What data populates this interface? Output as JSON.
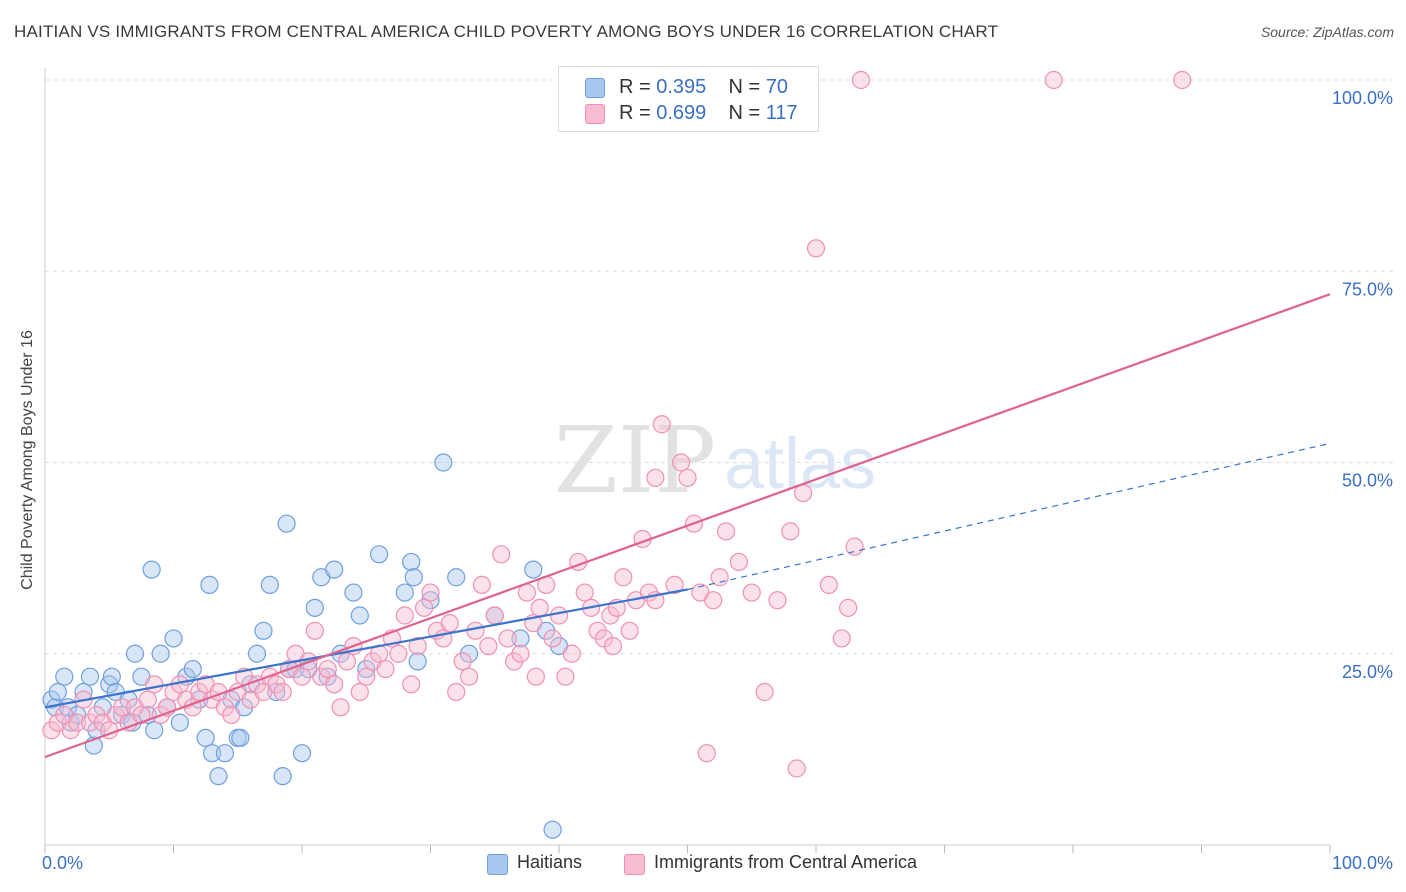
{
  "header": {
    "title": "HAITIAN VS IMMIGRANTS FROM CENTRAL AMERICA CHILD POVERTY AMONG BOYS UNDER 16 CORRELATION CHART",
    "source": "Source: ZipAtlas.com"
  },
  "watermark": {
    "zip": "ZIP",
    "atlas": "atlas"
  },
  "legend": {
    "rows": [
      {
        "r_label": "R = ",
        "r_value": "0.395",
        "n_label": "N = ",
        "n_value": "70"
      },
      {
        "r_label": "R = ",
        "r_value": "0.699",
        "n_label": "N = ",
        "n_value": "117"
      }
    ]
  },
  "chart_data": {
    "type": "scatter",
    "title": "HAITIAN VS IMMIGRANTS FROM CENTRAL AMERICA CHILD POVERTY AMONG BOYS UNDER 16 CORRELATION CHART",
    "xlabel": "",
    "ylabel": "Child Poverty Among Boys Under 16",
    "xlim": [
      0,
      100
    ],
    "ylim": [
      0,
      100
    ],
    "x_tick_labels": [
      "0.0%",
      "100.0%"
    ],
    "y_ticks": [
      25,
      50,
      75,
      100
    ],
    "y_tick_labels": [
      "25.0%",
      "50.0%",
      "75.0%",
      "100.0%"
    ],
    "grid": true,
    "legend_position": "top-center",
    "series": [
      {
        "name": "Haitians",
        "color": "#6f9fe0",
        "fill": "#a9c7ee",
        "line_color": "#3a74cc",
        "trend": {
          "x0": 0,
          "y0": 18.0,
          "x1": 50,
          "y1": 33.4,
          "dash_x1": 100,
          "dash_y1": 52.5
        },
        "points": [
          [
            0.5,
            19
          ],
          [
            0.8,
            18
          ],
          [
            1,
            20
          ],
          [
            1.5,
            22
          ],
          [
            1.8,
            18
          ],
          [
            2,
            16
          ],
          [
            2.5,
            17
          ],
          [
            3,
            20
          ],
          [
            3.5,
            22
          ],
          [
            3.8,
            13
          ],
          [
            4,
            15
          ],
          [
            4.5,
            18
          ],
          [
            5,
            21
          ],
          [
            5.2,
            22
          ],
          [
            5.5,
            20
          ],
          [
            6,
            17
          ],
          [
            6.5,
            19
          ],
          [
            6.8,
            16
          ],
          [
            7,
            25
          ],
          [
            7.5,
            22
          ],
          [
            8,
            17
          ],
          [
            8.5,
            15
          ],
          [
            8.3,
            36
          ],
          [
            9,
            25
          ],
          [
            9.5,
            18
          ],
          [
            10,
            27
          ],
          [
            10.5,
            16
          ],
          [
            11,
            22
          ],
          [
            11.5,
            23
          ],
          [
            12,
            19
          ],
          [
            12.5,
            14
          ],
          [
            12.8,
            34
          ],
          [
            13,
            12
          ],
          [
            13.5,
            9
          ],
          [
            14,
            12
          ],
          [
            14.5,
            19
          ],
          [
            15,
            14
          ],
          [
            15.5,
            18
          ],
          [
            15.2,
            14
          ],
          [
            16,
            21
          ],
          [
            16.5,
            25
          ],
          [
            17,
            28
          ],
          [
            17.5,
            34
          ],
          [
            18,
            20
          ],
          [
            18.5,
            9
          ],
          [
            18.8,
            42
          ],
          [
            19,
            23
          ],
          [
            19.5,
            23
          ],
          [
            20,
            12
          ],
          [
            20.5,
            23
          ],
          [
            21,
            31
          ],
          [
            21.5,
            35
          ],
          [
            22,
            22
          ],
          [
            22.5,
            36
          ],
          [
            23,
            25
          ],
          [
            24,
            33
          ],
          [
            24.5,
            30
          ],
          [
            25,
            23
          ],
          [
            26,
            38
          ],
          [
            28,
            33
          ],
          [
            28.5,
            37
          ],
          [
            28.7,
            35
          ],
          [
            29,
            24
          ],
          [
            30,
            32
          ],
          [
            31,
            50
          ],
          [
            32,
            35
          ],
          [
            33,
            25
          ],
          [
            35,
            30
          ],
          [
            37,
            27
          ],
          [
            38,
            36
          ],
          [
            39,
            28
          ],
          [
            40,
            26
          ],
          [
            39.5,
            2
          ]
        ]
      },
      {
        "name": "Immigrants from Central America",
        "color": "#f090b4",
        "fill": "#f7bcd1",
        "line_color": "#e0628e",
        "trend": {
          "x0": 0,
          "y0": 11.5,
          "x1": 100,
          "y1": 72.0
        },
        "points": [
          [
            0.5,
            15
          ],
          [
            1,
            16
          ],
          [
            1.5,
            17
          ],
          [
            2,
            15
          ],
          [
            2.5,
            16
          ],
          [
            3,
            19
          ],
          [
            3.5,
            16
          ],
          [
            4,
            17
          ],
          [
            4.5,
            16
          ],
          [
            5,
            15
          ],
          [
            5.5,
            17
          ],
          [
            6,
            18
          ],
          [
            6.5,
            16
          ],
          [
            7,
            18
          ],
          [
            7.5,
            17
          ],
          [
            8,
            19
          ],
          [
            8.5,
            21
          ],
          [
            9,
            17
          ],
          [
            9.5,
            18
          ],
          [
            10,
            20
          ],
          [
            10.5,
            21
          ],
          [
            11,
            19
          ],
          [
            11.5,
            18
          ],
          [
            12,
            20
          ],
          [
            12.5,
            21
          ],
          [
            13,
            19
          ],
          [
            13.5,
            20
          ],
          [
            14,
            18
          ],
          [
            14.5,
            17
          ],
          [
            15,
            20
          ],
          [
            15.5,
            22
          ],
          [
            16,
            19
          ],
          [
            16.5,
            21
          ],
          [
            17,
            20
          ],
          [
            17.5,
            22
          ],
          [
            18,
            21
          ],
          [
            18.5,
            20
          ],
          [
            19,
            23
          ],
          [
            19.5,
            25
          ],
          [
            20,
            22
          ],
          [
            20.5,
            24
          ],
          [
            21,
            28
          ],
          [
            21.5,
            22
          ],
          [
            22,
            23
          ],
          [
            22.5,
            21
          ],
          [
            23,
            18
          ],
          [
            23.5,
            24
          ],
          [
            24,
            26
          ],
          [
            24.5,
            20
          ],
          [
            25,
            22
          ],
          [
            25.5,
            24
          ],
          [
            26,
            25
          ],
          [
            26.5,
            23
          ],
          [
            27,
            27
          ],
          [
            27.5,
            25
          ],
          [
            28,
            30
          ],
          [
            28.5,
            21
          ],
          [
            29,
            26
          ],
          [
            29.5,
            31
          ],
          [
            30,
            33
          ],
          [
            30.5,
            28
          ],
          [
            31,
            27
          ],
          [
            31.5,
            29
          ],
          [
            32,
            20
          ],
          [
            32.5,
            24
          ],
          [
            33,
            22
          ],
          [
            33.5,
            28
          ],
          [
            34,
            34
          ],
          [
            34.5,
            26
          ],
          [
            35,
            30
          ],
          [
            35.5,
            38
          ],
          [
            36,
            27
          ],
          [
            36.5,
            24
          ],
          [
            37,
            25
          ],
          [
            37.5,
            33
          ],
          [
            38,
            29
          ],
          [
            38.5,
            31
          ],
          [
            39,
            34
          ],
          [
            39.5,
            27
          ],
          [
            40,
            30
          ],
          [
            40.5,
            22
          ],
          [
            41,
            25
          ],
          [
            41.5,
            37
          ],
          [
            42,
            33
          ],
          [
            42.5,
            31
          ],
          [
            43,
            28
          ],
          [
            43.5,
            27
          ],
          [
            44,
            30
          ],
          [
            44.5,
            31
          ],
          [
            45,
            35
          ],
          [
            45.5,
            28
          ],
          [
            46,
            32
          ],
          [
            46.5,
            40
          ],
          [
            47,
            33
          ],
          [
            47.5,
            48
          ],
          [
            48,
            55
          ],
          [
            49,
            34
          ],
          [
            49.5,
            50
          ],
          [
            50,
            48
          ],
          [
            50.5,
            42
          ],
          [
            51,
            33
          ],
          [
            51.5,
            12
          ],
          [
            52,
            32
          ],
          [
            52.5,
            35
          ],
          [
            53,
            41
          ],
          [
            54,
            37
          ],
          [
            55,
            33
          ],
          [
            56,
            20
          ],
          [
            57,
            32
          ],
          [
            58,
            41
          ],
          [
            58.5,
            10
          ],
          [
            59,
            46
          ],
          [
            60,
            78
          ],
          [
            61,
            34
          ],
          [
            62,
            27
          ],
          [
            62.5,
            31
          ],
          [
            63,
            39
          ],
          [
            63.5,
            100
          ],
          [
            78.5,
            100
          ],
          [
            88.5,
            100
          ],
          [
            47.5,
            32
          ],
          [
            44.2,
            26
          ],
          [
            38.2,
            22
          ]
        ]
      }
    ]
  }
}
